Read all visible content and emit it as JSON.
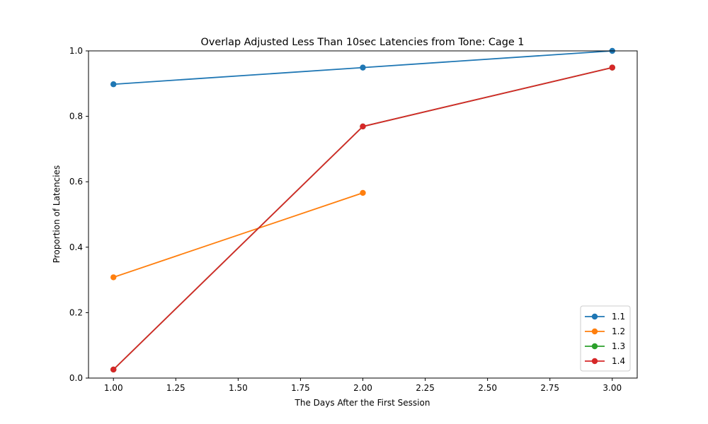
{
  "chart_data": {
    "type": "line",
    "title": "Overlap Adjusted Less Than 10sec Latencies from Tone: Cage 1",
    "xlabel": "The Days After the First Session",
    "ylabel": "Proportion of Latencies",
    "xlim": [
      0.9,
      3.1
    ],
    "ylim": [
      0.0,
      1.0
    ],
    "xticks": [
      1.0,
      1.25,
      1.5,
      1.75,
      2.0,
      2.25,
      2.5,
      2.75,
      3.0
    ],
    "xtick_labels": [
      "1.00",
      "1.25",
      "1.50",
      "1.75",
      "2.00",
      "2.25",
      "2.50",
      "2.75",
      "3.00"
    ],
    "yticks": [
      0.0,
      0.2,
      0.4,
      0.6,
      0.8,
      1.0
    ],
    "ytick_labels": [
      "0.0",
      "0.2",
      "0.4",
      "0.6",
      "0.8",
      "1.0"
    ],
    "grid": false,
    "legend_position": "lower-right",
    "series": [
      {
        "name": "1.1",
        "color": "#1f77b4",
        "x": [
          1,
          2,
          3
        ],
        "y": [
          0.898,
          0.949,
          1.0
        ]
      },
      {
        "name": "1.2",
        "color": "#ff7f0e",
        "x": [
          1,
          2
        ],
        "y": [
          0.308,
          0.566
        ]
      },
      {
        "name": "1.3",
        "color": "#2ca02c",
        "x": [
          1,
          2,
          3
        ],
        "y": [
          0.026,
          0.769,
          0.949
        ]
      },
      {
        "name": "1.4",
        "color": "#d62728",
        "x": [
          1,
          2,
          3
        ],
        "y": [
          0.026,
          0.769,
          0.949
        ]
      }
    ]
  }
}
